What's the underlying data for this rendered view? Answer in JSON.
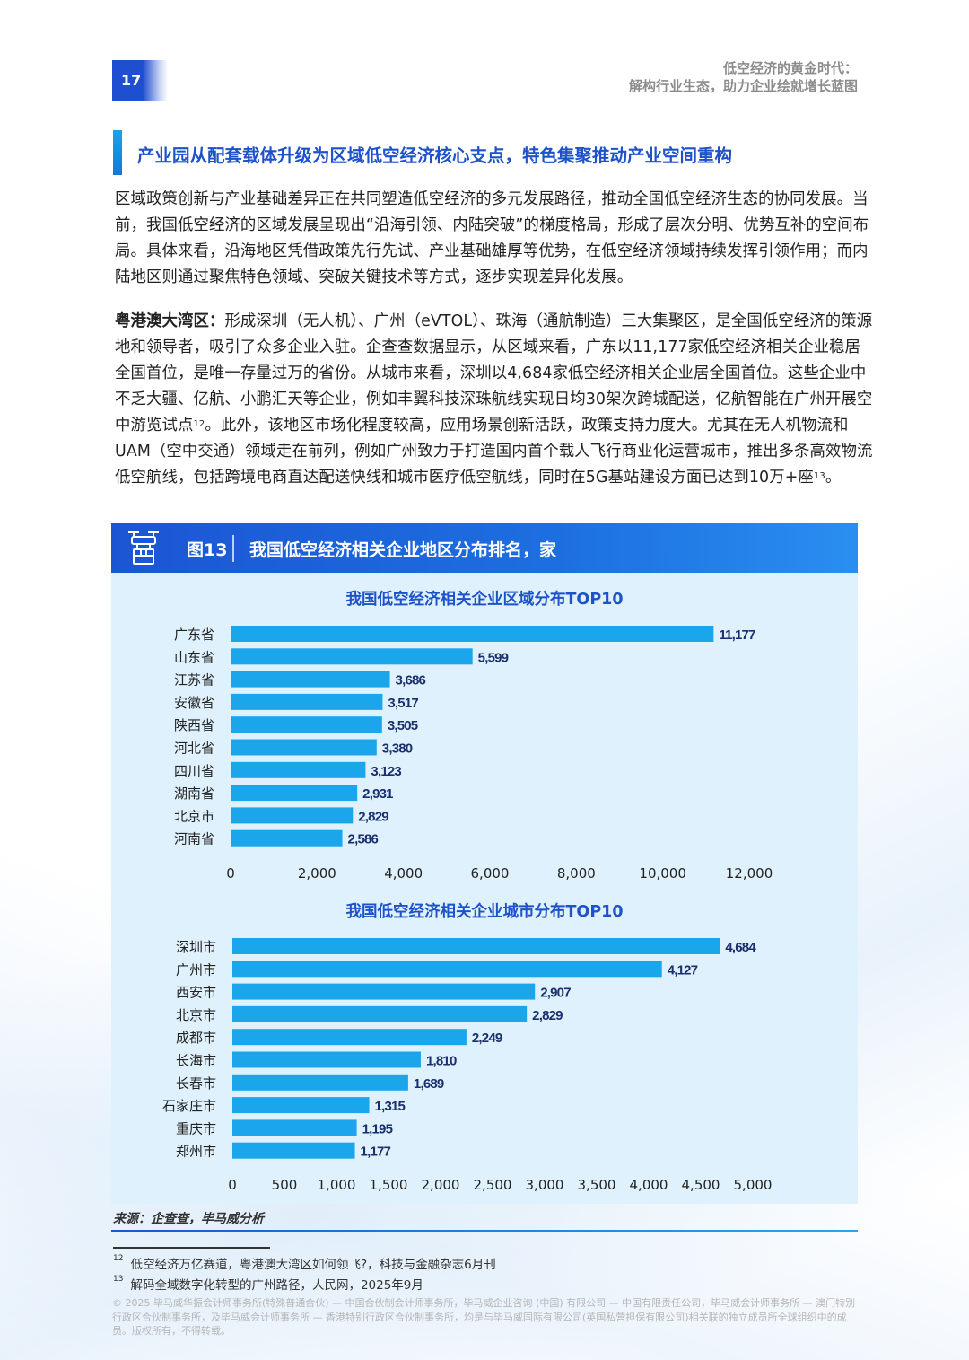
{
  "header": {
    "page_number": "17",
    "running_title_line1": "低空经济的黄金时代：",
    "running_title_line2": "解构行业生态，助力企业绘就增长蓝图"
  },
  "section": {
    "title": "产业园从配套载体升级为区域低空经济核心支点，特色集聚推动产业空间重构"
  },
  "paragraphs": {
    "p1": "区域政策创新与产业基础差异正在共同塑造低空经济的多元发展路径，推动全国低空经济生态的协同发展。当前，我国低空经济的区域发展呈现出“沿海引领、内陆突破”的梯度格局，形成了层次分明、优势互补的空间布局。具体来看，沿海地区凭借政策先行先试、产业基础雄厚等优势，在低空经济领域持续发挥引领作用；而内陆地区则通过聚焦特色领域、突破关键技术等方式，逐步实现差异化发展。",
    "p2_lead": "粤港澳大湾区：",
    "p2_part1": "形成深圳（无人机）、广州（eVTOL）、珠海（通航制造）三大集聚区，是全国低空经济的策源地和领导者，吸引了众多企业入驻。企查查数据显示，从区域来看，广东以11,177家低空经济相关企业稳居全国首位，是唯一存量过万的省份。从城市来看，深圳以4,684家低空经济相关企业居全国首位。这些企业中不乏大疆、亿航、小鹏汇天等企业，例如丰翼科技深珠航线实现日均30架次跨城配送，亿航智能在广州开展空中游览试点",
    "p2_sup1": "12",
    "p2_part2": "。此外，该地区市场化程度较高，应用场景创新活跃，政策支持力度大。尤其在无人机物流和UAM（空中交通）领域走在前列，例如广州致力于打造国内首个载人飞行商业化运营城市，推出多条高效物流低空航线，包括跨境电商直达配送快线和城市医疗低空航线，同时在5G基站建设方面已达到10万+座",
    "p2_sup2": "13",
    "p2_end": "。"
  },
  "figure": {
    "label": "图13",
    "title": "我国低空经济相关企业地区分布排名，家",
    "icon": "drone-package-icon"
  },
  "chart_data": [
    {
      "type": "bar",
      "orientation": "horizontal",
      "title": "我国低空经济相关企业区域分布TOP10",
      "categories": [
        "广东省",
        "山东省",
        "江苏省",
        "安徽省",
        "陕西省",
        "河北省",
        "四川省",
        "湖南省",
        "北京市",
        "河南省"
      ],
      "values": [
        11177,
        5599,
        3686,
        3517,
        3505,
        3380,
        3123,
        2931,
        2829,
        2586
      ],
      "value_labels": [
        "11,177",
        "5,599",
        "3,686",
        "3,517",
        "3,505",
        "3,380",
        "3,123",
        "2,931",
        "2,829",
        "2,586"
      ],
      "xlim": [
        0,
        12000
      ],
      "x_ticks": [
        "0",
        "2,000",
        "4,000",
        "6,000",
        "8,000",
        "10,000",
        "12,000"
      ],
      "color": "#1ba6ec",
      "grid": false
    },
    {
      "type": "bar",
      "orientation": "horizontal",
      "title": "我国低空经济相关企业城市分布TOP10",
      "categories": [
        "深圳市",
        "广州市",
        "西安市",
        "北京市",
        "成都市",
        "长海市",
        "长春市",
        "石家庄市",
        "重庆市",
        "郑州市"
      ],
      "values": [
        4684,
        4127,
        2907,
        2829,
        2249,
        1810,
        1689,
        1315,
        1195,
        1177
      ],
      "value_labels": [
        "4,684",
        "4,127",
        "2,907",
        "2,829",
        "2,249",
        "1,810",
        "1,689",
        "1,315",
        "1,195",
        "1,177"
      ],
      "xlim": [
        0,
        5000
      ],
      "x_ticks": [
        "0",
        "500",
        "1,000",
        "1,500",
        "2,000",
        "2,500",
        "3,000",
        "3,500",
        "4,000",
        "4,500",
        "5,000"
      ],
      "color": "#1ba6ec",
      "grid": false
    }
  ],
  "source": "来源：企查查，毕马威分析",
  "footnotes": [
    {
      "mark": "12",
      "text": "低空经济万亿赛道，粤港澳大湾区如何领飞?，科技与金融杂志6月刊"
    },
    {
      "mark": "13",
      "text": "解码全域数字化转型的广州路径，人民网，2025年9月"
    }
  ],
  "disclaimer": "© 2025 毕马威华振会计师事务所(特殊普通合伙) — 中国合伙制会计师事务所，毕马威企业咨询 (中国) 有限公司 — 中国有限责任公司，毕马威会计师事务所 — 澳门特别行政区合伙制事务所，及毕马威会计师事务所 — 香港特别行政区合伙制事务所，均是与毕马威国际有限公司(英国私营担保有限公司)相关联的独立成员所全球组织中的成员。版权所有，不得转载。"
}
